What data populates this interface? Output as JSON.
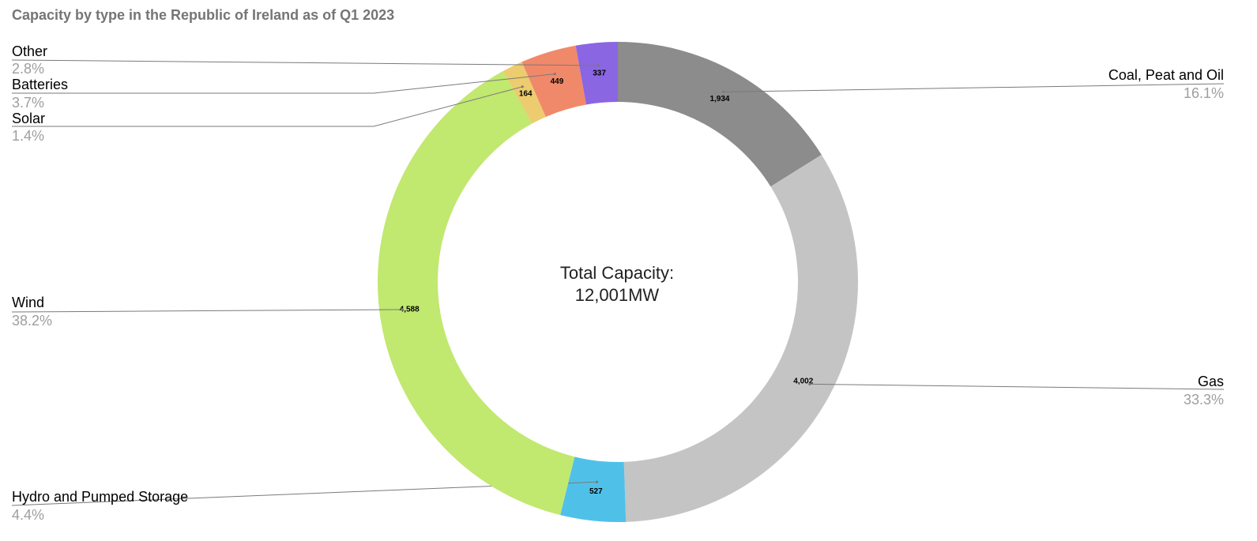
{
  "chart_data": {
    "type": "pie",
    "title": "Capacity by type in the Republic of Ireland as of Q1 2023",
    "center_text": [
      "Total Capacity:",
      "12,001MW"
    ],
    "slices": [
      {
        "name": "Coal, Peat and Oil",
        "value": 1934,
        "value_label": "1,934",
        "percent_label": "16.1%",
        "color": "#8c8c8c"
      },
      {
        "name": "Gas",
        "value": 4002,
        "value_label": "4,002",
        "percent_label": "33.3%",
        "color": "#c4c4c4"
      },
      {
        "name": "Hydro and Pumped Storage",
        "value": 527,
        "value_label": "527",
        "percent_label": "4.4%",
        "color": "#4fc1e8"
      },
      {
        "name": "Wind",
        "value": 4588,
        "value_label": "4,588",
        "percent_label": "38.2%",
        "color": "#c1e86f"
      },
      {
        "name": "Solar",
        "value": 164,
        "value_label": "164",
        "percent_label": "1.4%",
        "color": "#eccc6e"
      },
      {
        "name": "Batteries",
        "value": 449,
        "value_label": "449",
        "percent_label": "3.7%",
        "color": "#f0896a"
      },
      {
        "name": "Other",
        "value": 337,
        "value_label": "337",
        "percent_label": "2.8%",
        "color": "#8a66e2"
      }
    ]
  }
}
